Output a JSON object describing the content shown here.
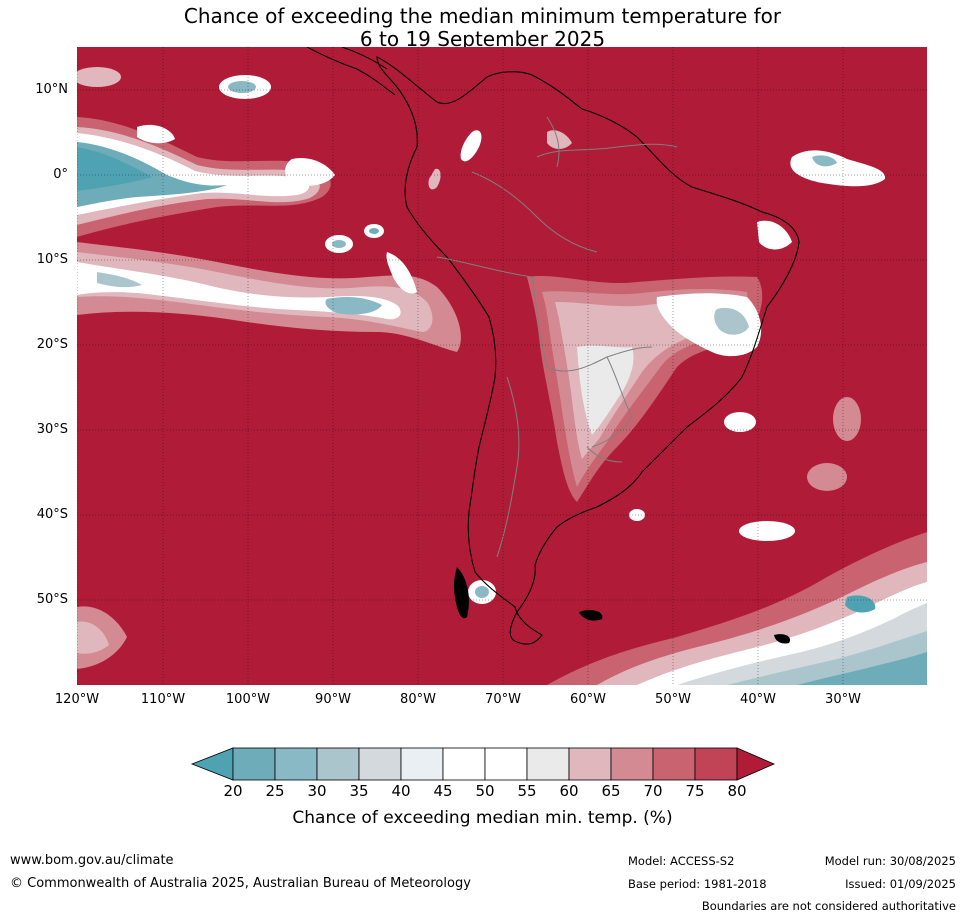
{
  "title": {
    "line1": "Chance of exceeding the median minimum temperature for",
    "line2": "6 to 19 September 2025"
  },
  "map": {
    "lat_labels": [
      "10°N",
      "0°",
      "10°S",
      "20°S",
      "30°S",
      "40°S",
      "50°S"
    ],
    "lon_labels": [
      "120°W",
      "110°W",
      "100°W",
      "90°W",
      "80°W",
      "70°W",
      "60°W",
      "50°W",
      "40°W",
      "30°W"
    ],
    "dominant_category": "80+",
    "colors": {
      "above_80": "#b01c37",
      "c75_80": "#c04456",
      "c70_75": "#c9636f",
      "c65_70": "#d38a92",
      "c60_65": "#e0b7bc",
      "c55_60": "#eaeaea",
      "c45_55": "#ffffff",
      "c40_45": "#e9eff3",
      "c35_40": "#d3d9dc",
      "c30_35": "#abc5cd",
      "c25_30": "#8ab9c6",
      "c20_25": "#6eacba",
      "below_20": "#4fa2b2",
      "coastline": "#000000",
      "borders": "#7f7f7f"
    }
  },
  "colorbar": {
    "ticks": [
      "20",
      "25",
      "30",
      "35",
      "40",
      "45",
      "50",
      "55",
      "60",
      "65",
      "70",
      "75",
      "80"
    ],
    "label": "Chance of exceeding median min. temp. (%)"
  },
  "footer": {
    "url": "www.bom.gov.au/climate",
    "copyright": "© Commonwealth of Australia 2025, Australian Bureau of Meteorology",
    "model": "Model: ACCESS-S2",
    "base_period": "Base period: 1981-2018",
    "model_run": "Model run: 30/08/2025",
    "issued": "Issued: 01/09/2025",
    "disclaimer": "Boundaries are not considered authoritative"
  }
}
